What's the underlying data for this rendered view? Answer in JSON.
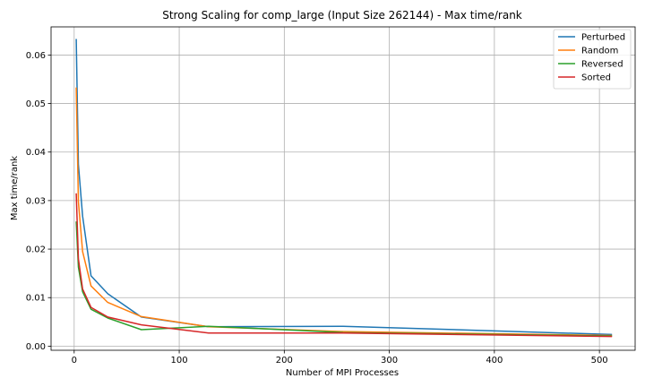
{
  "chart_data": {
    "type": "line",
    "title": "Strong Scaling for comp_large (Input Size 262144) - Max time/rank",
    "xlabel": "Number of MPI Processes",
    "ylabel": "Max time/rank",
    "xlim": [
      -22,
      534
    ],
    "ylim": [
      -0.00085,
      0.0658
    ],
    "x_ticks": [
      0,
      100,
      200,
      300,
      400,
      500
    ],
    "x_tick_labels": [
      "0",
      "100",
      "200",
      "300",
      "400",
      "500"
    ],
    "y_ticks": [
      0.0,
      0.01,
      0.02,
      0.03,
      0.04,
      0.05,
      0.06
    ],
    "y_tick_labels": [
      "0.00",
      "0.01",
      "0.02",
      "0.03",
      "0.04",
      "0.05",
      "0.06"
    ],
    "grid": true,
    "legend_position": "top-right",
    "x": [
      2,
      4,
      8,
      16,
      32,
      64,
      128,
      256,
      512
    ],
    "series": [
      {
        "name": "Perturbed",
        "color": "#1f77b4",
        "values": [
          0.0633,
          0.0375,
          0.0268,
          0.0145,
          0.0108,
          0.006,
          0.004,
          0.0041,
          0.0024
        ]
      },
      {
        "name": "Random",
        "color": "#ff7f0e",
        "values": [
          0.0533,
          0.0298,
          0.0195,
          0.0124,
          0.009,
          0.0061,
          0.004,
          0.003,
          0.0022
        ]
      },
      {
        "name": "Reversed",
        "color": "#2ca02c",
        "values": [
          0.0257,
          0.0163,
          0.0112,
          0.0076,
          0.0058,
          0.0034,
          0.0041,
          0.0028,
          0.0021
        ]
      },
      {
        "name": "Sorted",
        "color": "#d62728",
        "values": [
          0.0315,
          0.018,
          0.0118,
          0.008,
          0.006,
          0.0044,
          0.0027,
          0.0027,
          0.002
        ]
      }
    ]
  }
}
